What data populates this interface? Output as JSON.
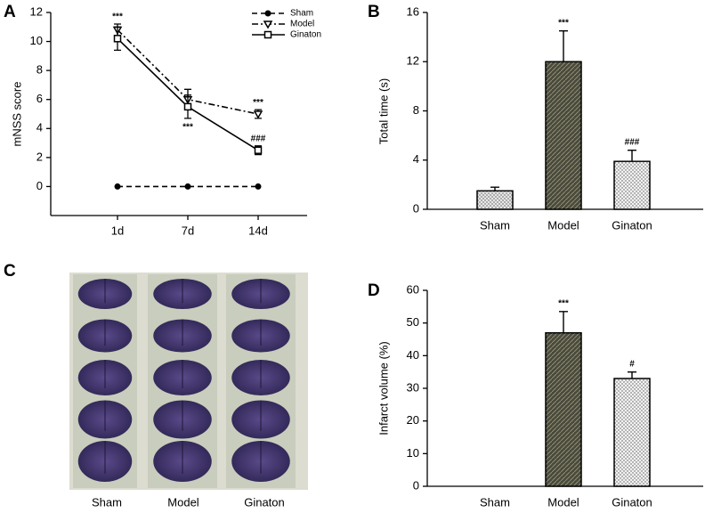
{
  "chart_data": [
    {
      "type": "line",
      "panel": "A",
      "y_label": "mNSS score",
      "categories": [
        "1d",
        "7d",
        "14d"
      ],
      "ylim": [
        -2,
        12
      ],
      "yticks": [
        0,
        2,
        4,
        6,
        8,
        10,
        12
      ],
      "legend": "upper right",
      "series": [
        {
          "name": "Sham",
          "color": "#000000",
          "line_style": "dashed",
          "marker": "circle",
          "values": [
            0,
            0,
            0
          ]
        },
        {
          "name": "Model",
          "color": "#000000",
          "line_style": "dashdot",
          "marker": "triangle-down",
          "values": [
            10.8,
            6.0,
            5.0
          ],
          "errors": [
            0.4,
            0.7,
            0.3
          ],
          "annotations": [
            "***",
            null,
            "***"
          ]
        },
        {
          "name": "Ginaton",
          "color": "#000000",
          "line_style": "solid",
          "marker": "square",
          "values": [
            10.2,
            5.5,
            2.5
          ],
          "errors": [
            0.8,
            0.8,
            0.3
          ],
          "annotations": [
            null,
            "***",
            "###"
          ]
        }
      ]
    },
    {
      "type": "bar",
      "panel": "B",
      "y_label": "Total time (s)",
      "categories": [
        "Sham",
        "Model",
        "Ginaton"
      ],
      "values": [
        1.5,
        12.0,
        3.9
      ],
      "errors": [
        0.3,
        2.5,
        0.9
      ],
      "annotations": [
        null,
        "***",
        "###"
      ],
      "colors": [
        "#e6e6e6",
        "#4a4a3c",
        "#f2f2f2"
      ],
      "ylim": [
        0,
        16
      ],
      "yticks": [
        0,
        4,
        8,
        12,
        16
      ]
    },
    {
      "type": "bar",
      "panel": "D",
      "y_label": "Infarct volume (%)",
      "categories": [
        "Sham",
        "Model",
        "Ginaton"
      ],
      "values": [
        0,
        47,
        33
      ],
      "errors": [
        0,
        6.5,
        2
      ],
      "annotations": [
        null,
        "***",
        "#"
      ],
      "colors": [
        "#e6e6e6",
        "#4a4a3c",
        "#f2f2f2"
      ],
      "ylim": [
        0,
        60
      ],
      "yticks": [
        0,
        10,
        20,
        30,
        40,
        50,
        60
      ]
    }
  ],
  "panel_c": {
    "label": "C",
    "columns": [
      "Sham",
      "Model",
      "Ginaton"
    ]
  }
}
